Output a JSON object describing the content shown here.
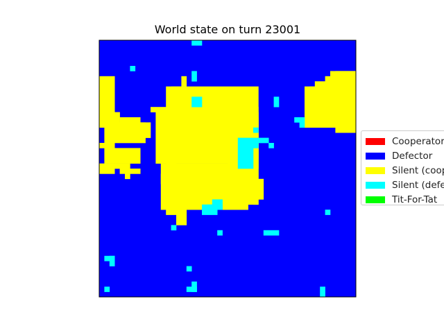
{
  "chart_data": {
    "type": "heatmap",
    "title": "World state on turn 23001",
    "xlabel": "",
    "ylabel": "",
    "grid": false,
    "legend_position": "right",
    "categories": [
      "Cooperator",
      "Defector",
      "Silent (cooperator)",
      "Silent (defector)",
      "Tit-For-Tat"
    ],
    "legend": [
      {
        "label": "Cooperator",
        "color": "#ff0000"
      },
      {
        "label": "Defector",
        "color": "#0000ff"
      },
      {
        "label": "Silent (coop",
        "color": "#ffff00"
      },
      {
        "label": "Silent (defe",
        "color": "#00ffff"
      },
      {
        "label": "Tit-For-Tat",
        "color": "#00ff00"
      }
    ],
    "grid_size": [
      50,
      50
    ],
    "background_state": "Defector",
    "regions": [
      {
        "state": "Silent (cooperator)",
        "cells": [
          [
            0,
            7,
            3,
            17
          ],
          [
            3,
            14,
            4,
            17
          ],
          [
            1,
            21,
            8,
            24
          ],
          [
            3,
            24,
            6,
            25
          ],
          [
            4,
            25,
            6,
            26
          ],
          [
            5,
            25,
            6,
            27
          ],
          [
            1,
            16,
            9,
            20
          ],
          [
            3,
            17,
            9,
            19
          ],
          [
            5,
            16,
            10,
            19
          ],
          [
            4,
            15,
            8,
            16
          ],
          [
            6,
            25,
            8,
            26
          ],
          [
            0,
            24,
            3,
            26
          ],
          [
            0,
            20,
            3,
            21
          ],
          [
            10,
            13,
            11,
            14
          ],
          [
            13,
            9,
            31,
            13
          ],
          [
            11,
            13,
            31,
            24
          ],
          [
            13,
            24,
            31,
            32
          ],
          [
            12,
            26,
            29,
            33
          ],
          [
            15,
            32,
            17,
            36
          ],
          [
            13,
            17,
            15,
            25
          ],
          [
            14,
            27,
            22,
            33
          ],
          [
            40,
            9,
            50,
            17
          ],
          [
            42,
            8,
            50,
            10
          ],
          [
            44,
            7,
            50,
            9
          ],
          [
            45,
            6,
            50,
            8
          ],
          [
            46,
            6,
            50,
            18
          ],
          [
            41,
            9,
            47,
            12
          ],
          [
            31,
            27,
            32,
            31
          ],
          [
            30,
            29,
            31,
            32
          ],
          [
            13,
            26,
            16,
            34
          ],
          [
            12,
            24,
            13,
            28
          ],
          [
            16,
            7,
            17,
            9
          ],
          [
            14,
            9,
            16,
            13
          ],
          [
            25,
            13,
            31,
            26
          ],
          [
            30,
            14,
            31,
            25
          ],
          [
            31,
            15,
            31,
            23
          ],
          [
            30,
            26,
            31,
            27
          ],
          [
            32,
            27,
            31,
            28
          ]
        ]
      },
      {
        "state": "Silent (defector)",
        "cells": [
          [
            18,
            0,
            20,
            1
          ],
          [
            18,
            6,
            19,
            8
          ],
          [
            18,
            11,
            20,
            13
          ],
          [
            6,
            5,
            7,
            6
          ],
          [
            27,
            21,
            30,
            25
          ],
          [
            27,
            19,
            31,
            21
          ],
          [
            31,
            19,
            33,
            20
          ],
          [
            33,
            20,
            34,
            21
          ],
          [
            30,
            17,
            31,
            18
          ],
          [
            34,
            11,
            35,
            13
          ],
          [
            38,
            15,
            39,
            16
          ],
          [
            39,
            15,
            40,
            17
          ],
          [
            20,
            32,
            23,
            34
          ],
          [
            21,
            32,
            24,
            33
          ],
          [
            22,
            31,
            24,
            33
          ],
          [
            32,
            37,
            35,
            38
          ],
          [
            44,
            33,
            45,
            34
          ],
          [
            14,
            36,
            15,
            37
          ],
          [
            23,
            37,
            24,
            38
          ],
          [
            1,
            42,
            3,
            43
          ],
          [
            2,
            42,
            3,
            44
          ],
          [
            17,
            44,
            18,
            45
          ],
          [
            18,
            47,
            19,
            49
          ],
          [
            17,
            48,
            19,
            49
          ],
          [
            1,
            48,
            2,
            49
          ],
          [
            43,
            48,
            44,
            50
          ]
        ]
      }
    ]
  }
}
